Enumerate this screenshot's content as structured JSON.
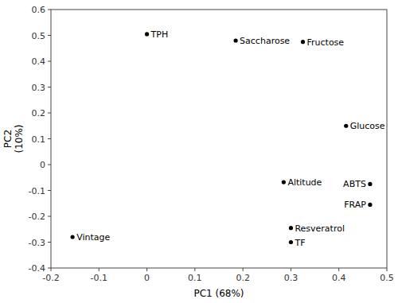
{
  "chart_data": {
    "type": "scatter",
    "x": [
      0.0,
      0.185,
      0.325,
      0.415,
      0.285,
      0.465,
      0.465,
      0.3,
      0.3,
      -0.155
    ],
    "values": [
      0.505,
      0.48,
      0.475,
      0.15,
      -0.068,
      -0.075,
      -0.155,
      -0.245,
      -0.3,
      -0.28
    ],
    "annotations": [
      "TPH",
      "Saccharose",
      "Fructose",
      "Glucose",
      "Altitude",
      "ABTS",
      "FRAP",
      "Resveratrol",
      "TF",
      "Vintage"
    ],
    "xlabel": "PC1 (68%)",
    "ylabel": "PC2\n(10%)",
    "xlim": [
      -0.2,
      0.5
    ],
    "ylim": [
      -0.4,
      0.6
    ],
    "xticks": [
      -0.2,
      -0.1,
      0.0,
      0.1,
      0.2,
      0.3,
      0.4,
      0.5
    ],
    "yticks": [
      -0.4,
      -0.3,
      -0.2,
      -0.1,
      0.0,
      0.1,
      0.2,
      0.3,
      0.4,
      0.5,
      0.6
    ],
    "color": "black",
    "grid": false
  }
}
